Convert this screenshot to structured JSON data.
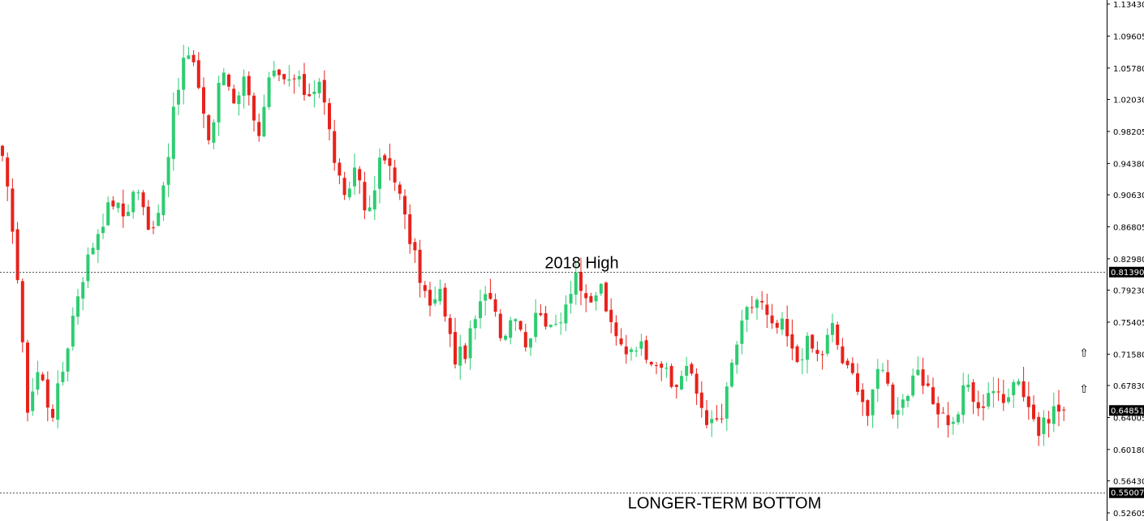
{
  "chart_data": {
    "type": "candlestick",
    "title": "",
    "xlabel": "",
    "ylabel": "",
    "ylim": [
      0.52605,
      1.1343
    ],
    "y_ticks": [
      "1.13430",
      "1.09605",
      "1.05780",
      "1.02030",
      "0.98205",
      "0.94380",
      "0.90630",
      "0.86805",
      "0.82980",
      "0.79230",
      "0.75405",
      "0.71580",
      "0.67830",
      "0.64005",
      "0.60180",
      "0.56430",
      "0.52605"
    ],
    "grid": false,
    "legend": "none",
    "colors": {
      "up": "#2ecc71",
      "down": "#e8221b",
      "level_line": "#555555",
      "tag_bg": "#000000",
      "tag_text": "#ffffff"
    },
    "levels": [
      {
        "label": "2018 High",
        "value": 0.8139,
        "tag": "0.81390"
      },
      {
        "label": "LONGER-TERM BOTTOM",
        "value": 0.55007,
        "tag": "0.55007"
      }
    ],
    "current_price": {
      "value": 0.64851,
      "tag": "0.64851"
    },
    "arrow_icons": [
      {
        "name": "up-arrow-icon",
        "glyph": "⇧",
        "price": 0.7175
      },
      {
        "name": "up-arrow-icon",
        "glyph": "⇧",
        "price": 0.6745
      }
    ],
    "close_path": [
      0.945,
      0.855,
      0.65,
      0.7,
      0.64,
      0.7,
      0.78,
      0.83,
      0.87,
      0.9,
      0.88,
      0.92,
      0.86,
      0.9,
      1.0,
      1.08,
      1.045,
      0.965,
      1.06,
      1.02,
      1.05,
      0.97,
      1.05,
      1.04,
      1.045,
      1.025,
      1.045,
      0.965,
      0.895,
      0.945,
      0.875,
      0.95,
      0.94,
      0.875,
      0.82,
      0.77,
      0.79,
      0.71,
      0.72,
      0.77,
      0.79,
      0.735,
      0.77,
      0.725,
      0.775,
      0.74,
      0.77,
      0.815,
      0.765,
      0.8,
      0.74,
      0.72,
      0.73,
      0.715,
      0.705,
      0.67,
      0.705,
      0.665,
      0.63,
      0.64,
      0.72,
      0.765,
      0.785,
      0.745,
      0.75,
      0.705,
      0.73,
      0.71,
      0.75,
      0.7,
      0.685,
      0.64,
      0.715,
      0.65,
      0.665,
      0.69,
      0.665,
      0.645,
      0.63,
      0.685,
      0.645,
      0.68,
      0.655,
      0.695,
      0.66,
      0.62,
      0.65,
      0.6485
    ]
  }
}
